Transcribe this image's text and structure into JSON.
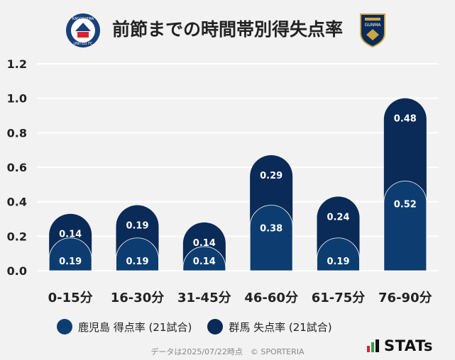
{
  "header": {
    "title": "前節までの時間帯別得失点率",
    "left_logo_text_top": "KAGOSHIMA",
    "left_logo_text_bottom": "UNITED FC",
    "right_logo_text": "GUNMA"
  },
  "colors": {
    "team_a": "#0d3d70",
    "team_b": "#0a2a57",
    "grid": "#ffffff",
    "background": "#f2f2f2"
  },
  "chart_data": {
    "type": "bar",
    "stacked": true,
    "categories": [
      "0-15分",
      "16-30分",
      "31-45分",
      "46-60分",
      "61-75分",
      "76-90分"
    ],
    "series": [
      {
        "name": "鹿児島 得点率 (21試合)",
        "values": [
          0.19,
          0.19,
          0.14,
          0.38,
          0.19,
          0.52
        ]
      },
      {
        "name": "群馬 失点率 (21試合)",
        "values": [
          0.14,
          0.19,
          0.14,
          0.29,
          0.24,
          0.48
        ]
      }
    ],
    "value_labels_a": [
      "0.19",
      "0.19",
      "0.14",
      "0.38",
      "0.19",
      "0.52"
    ],
    "value_labels_b": [
      "0.14",
      "0.19",
      "0.14",
      "0.29",
      "0.24",
      "0.48"
    ],
    "yticks": [
      "0.0",
      "0.2",
      "0.4",
      "0.6",
      "0.8",
      "1.0",
      "1.2"
    ],
    "ylim": [
      0,
      1.2
    ],
    "grid": true,
    "legend_position": "bottom-left"
  },
  "footer": {
    "note": "データは2025/07/22時点　© SPORTERIA",
    "stats_label": "STATs"
  }
}
